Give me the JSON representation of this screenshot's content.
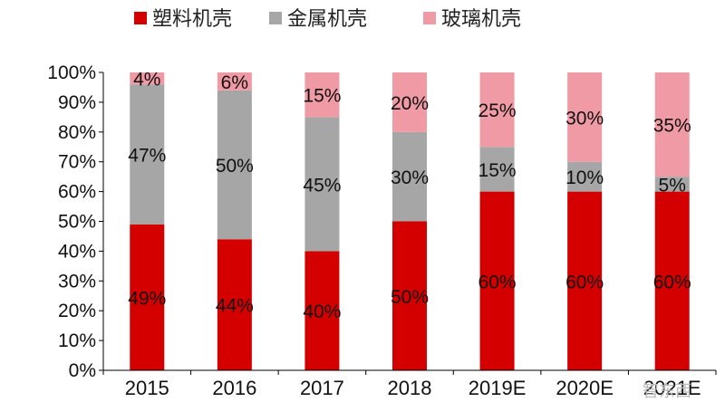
{
  "chart_data": {
    "type": "bar",
    "stacked": true,
    "percent": true,
    "categories": [
      "2015",
      "2016",
      "2017",
      "2018",
      "2019E",
      "2020E",
      "2021E"
    ],
    "series": [
      {
        "name": "塑料机壳",
        "color": "#d40000",
        "values": [
          49,
          44,
          40,
          50,
          60,
          60,
          60
        ],
        "labels": [
          "49%",
          "44%",
          "40%",
          "50%",
          "60%",
          "60%",
          "60%"
        ]
      },
      {
        "name": "金属机壳",
        "color": "#a6a6a6",
        "values": [
          47,
          50,
          45,
          30,
          15,
          10,
          5
        ],
        "labels": [
          "47%",
          "50%",
          "45%",
          "30%",
          "15%",
          "10%",
          "5%"
        ]
      },
      {
        "name": "玻璃机壳",
        "color": "#f09aa5",
        "values": [
          4,
          6,
          15,
          20,
          25,
          30,
          35
        ],
        "labels": [
          "4%",
          "6%",
          "15%",
          "20%",
          "25%",
          "30%",
          "35%"
        ]
      }
    ],
    "ylim": [
      0,
      100
    ],
    "yticks": [
      "0%",
      "10%",
      "20%",
      "30%",
      "40%",
      "50%",
      "60%",
      "70%",
      "80%",
      "90%",
      "100%"
    ],
    "xlabel": "",
    "ylabel": "",
    "title": "",
    "grid": false,
    "legend_position": "top"
  },
  "watermark": "智东西"
}
